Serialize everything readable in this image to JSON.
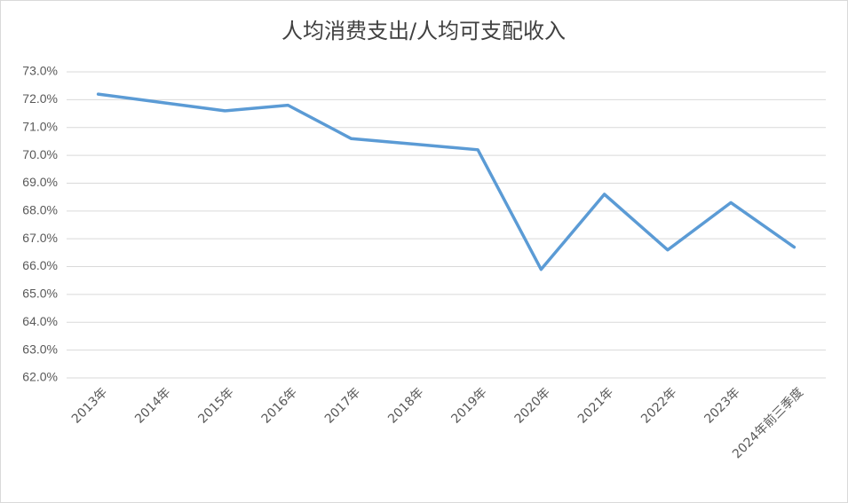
{
  "chart_data": {
    "type": "line",
    "title": "人均消费支出/人均可支配收入",
    "categories": [
      "2013年",
      "2014年",
      "2015年",
      "2016年",
      "2017年",
      "2018年",
      "2019年",
      "2020年",
      "2021年",
      "2022年",
      "2023年",
      "2024年前三季度"
    ],
    "values": [
      72.2,
      71.9,
      71.6,
      71.8,
      70.6,
      70.4,
      70.2,
      65.9,
      68.6,
      66.6,
      68.3,
      66.7
    ],
    "color": "#5b9bd5",
    "ylim": [
      62,
      73
    ],
    "yticks": [
      {
        "value": 62,
        "label": "62.0%"
      },
      {
        "value": 63,
        "label": "63.0%"
      },
      {
        "value": 64,
        "label": "64.0%"
      },
      {
        "value": 65,
        "label": "65.0%"
      },
      {
        "value": 66,
        "label": "66.0%"
      },
      {
        "value": 67,
        "label": "67.0%"
      },
      {
        "value": 68,
        "label": "68.0%"
      },
      {
        "value": 69,
        "label": "69.0%"
      },
      {
        "value": 70,
        "label": "70.0%"
      },
      {
        "value": 71,
        "label": "71.0%"
      },
      {
        "value": 72,
        "label": "72.0%"
      },
      {
        "value": 73,
        "label": "73.0%"
      }
    ],
    "grid": true
  }
}
